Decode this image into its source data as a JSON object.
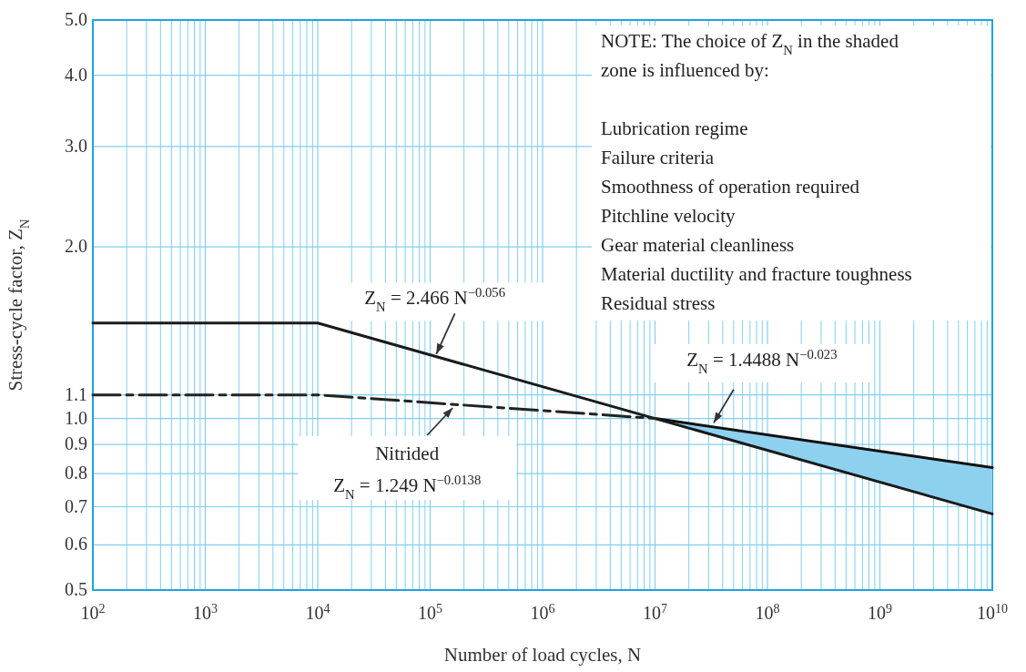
{
  "chart_data": {
    "type": "line",
    "xlabel": "Number of load cycles, N",
    "ylabel": "Stress-cycle factor, Z$_{N}$",
    "log": "xy",
    "xlim": [
      100,
      10000000000
    ],
    "ylim": [
      0.5,
      5.0
    ],
    "xticks": [
      {
        "value": 100,
        "label": "10$^{2}$"
      },
      {
        "value": 1000,
        "label": "10$^{3}$"
      },
      {
        "value": 10000,
        "label": "10$^{4}$"
      },
      {
        "value": 100000,
        "label": "10$^{5}$"
      },
      {
        "value": 1000000,
        "label": "10$^{6}$"
      },
      {
        "value": 10000000,
        "label": "10$^{7}$"
      },
      {
        "value": 100000000,
        "label": "10$^{8}$"
      },
      {
        "value": 1000000000,
        "label": "10$^{9}$"
      },
      {
        "value": 10000000000,
        "label": "10$^{10}$"
      }
    ],
    "yticks": [
      {
        "value": 0.5,
        "label": "0.5"
      },
      {
        "value": 0.6,
        "label": "0.6"
      },
      {
        "value": 0.7,
        "label": "0.7"
      },
      {
        "value": 0.8,
        "label": "0.8"
      },
      {
        "value": 0.9,
        "label": "0.9"
      },
      {
        "value": 1.0,
        "label": "1.0"
      },
      {
        "value": 1.1,
        "label": "1.1"
      },
      {
        "value": 2.0,
        "label": "2.0"
      },
      {
        "value": 3.0,
        "label": "3.0"
      },
      {
        "value": 4.0,
        "label": "4.0"
      },
      {
        "value": 5.0,
        "label": "5.0"
      }
    ],
    "grid": true,
    "series": [
      {
        "color": "#111111",
        "line_style": "solid",
        "x": [
          10000000,
          10000000000
        ],
        "values": [
          1.0,
          0.82
        ],
        "lower": [
          1.0,
          0.68
        ],
        "upper": [
          1.0,
          0.82
        ]
      },
      {
        "color": "#1a1a1a",
        "line_style": "solid",
        "x": [
          100,
          10000,
          10000000000
        ],
        "values": [
          1.47,
          1.47,
          0.68
        ]
      },
      {
        "name": "Nitrided",
        "color": "#222222",
        "line_style": "dashed",
        "x": [
          100,
          10000,
          10000000
        ],
        "values": [
          1.1,
          1.1,
          1.0
        ]
      }
    ],
    "annotations": [
      {
        "text": "Z$_{N}$= 2.466 N$^{−0.056}$",
        "x": 110000,
        "y": 1.28
      },
      "Z$_{N}$= 1.249 N$^{−0.0138}$",
      {
        "text": "Z$_{N}$= 1.4488 N$^{−0.023}$",
        "x": 32000000,
        "y": 0.97
      },
      "NOTE:   The choice of Z$_{N}$ in the shaded\nzone is influenced by:\n\nLubrication regime\nFailure criteria\nSmoothness of operation required\nPitchline velocity\nGear material cleanliness\nMaterial ductility and fracture toughness\nResidual stress"
    ]
  }
}
